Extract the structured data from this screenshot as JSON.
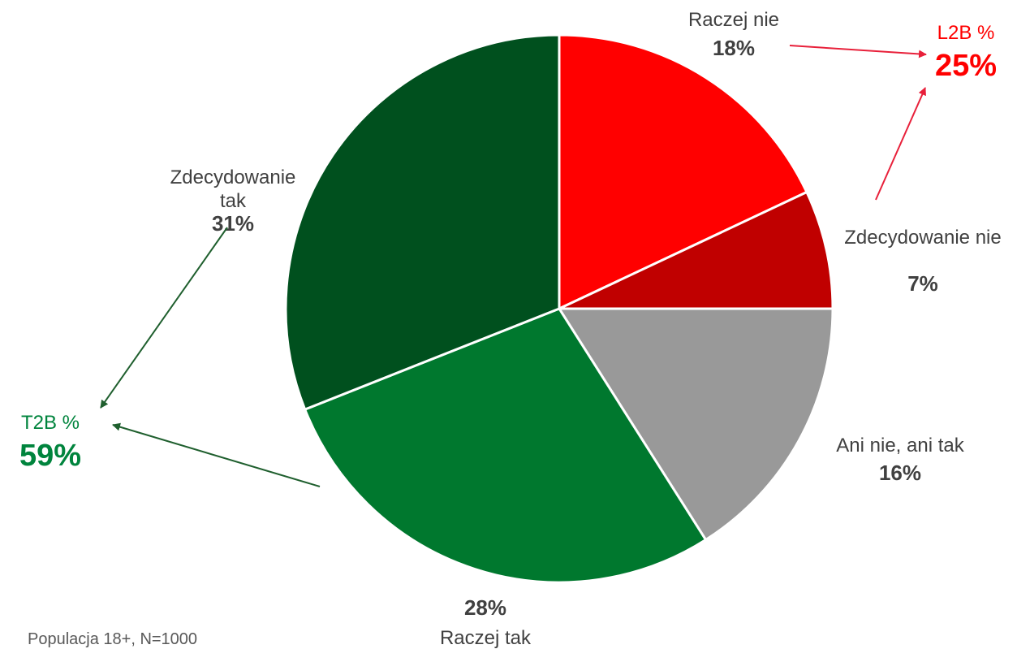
{
  "chart_data": {
    "type": "pie",
    "slices": [
      {
        "label": "Raczej nie",
        "value": 18,
        "value_label": "18%",
        "color": "#ff0000"
      },
      {
        "label": "Zdecydowanie nie",
        "value": 7,
        "value_label": "7%",
        "color": "#c00000"
      },
      {
        "label": "Ani nie, ani tak",
        "value": 16,
        "value_label": "16%",
        "color": "#999999"
      },
      {
        "label": "Raczej tak",
        "value": 28,
        "value_label": "28%",
        "color": "#00782e"
      },
      {
        "label": "Zdecydowanie tak",
        "value": 31,
        "value_label": "31%",
        "color": "#00501e"
      }
    ],
    "slice_labels": [
      {
        "name_lines": [
          "Raczej nie"
        ],
        "pct": "18%"
      },
      {
        "name_lines": [
          "Zdecydowanie nie"
        ],
        "pct": "7%"
      },
      {
        "name_lines": [
          "Ani nie, ani tak"
        ],
        "pct": "16%"
      },
      {
        "name_lines": [
          "Raczej tak"
        ],
        "pct": "28%"
      },
      {
        "name_lines": [
          "Zdecydowanie",
          "tak"
        ],
        "pct": "31%"
      }
    ],
    "annotations": {
      "t2b": {
        "label": "T2B %",
        "value": "59%",
        "color": "#00843d",
        "arrow_color": "#1f5f2e"
      },
      "l2b": {
        "label": "L2B %",
        "value": "25%",
        "color": "#ff0000",
        "arrow_color": "#e8203a"
      }
    },
    "legend": "none"
  },
  "footnote": "Populacja 18+, N=1000"
}
